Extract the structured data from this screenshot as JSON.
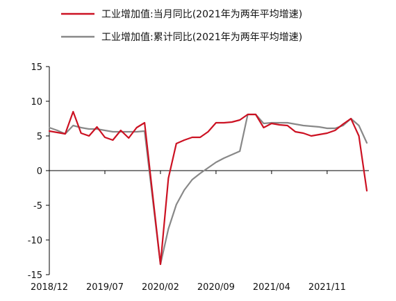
{
  "chart_data": {
    "type": "line",
    "title": "",
    "xlabel": "",
    "ylabel": "",
    "ylim": [
      -15,
      15
    ],
    "yticks": [
      15,
      10,
      5,
      0,
      -5,
      -10,
      -15
    ],
    "x": [
      "2018/12",
      "2019/01",
      "2019/02",
      "2019/03",
      "2019/04",
      "2019/05",
      "2019/06",
      "2019/07",
      "2019/08",
      "2019/09",
      "2019/10",
      "2019/11",
      "2019/12",
      "2020/01",
      "2020/02",
      "2020/03",
      "2020/04",
      "2020/05",
      "2020/06",
      "2020/07",
      "2020/08",
      "2020/09",
      "2020/10",
      "2020/11",
      "2020/12",
      "2021/01",
      "2021/02",
      "2021/03",
      "2021/04",
      "2021/05",
      "2021/06",
      "2021/07",
      "2021/08",
      "2021/09",
      "2021/10",
      "2021/11",
      "2021/12",
      "2022/01",
      "2022/02",
      "2022/03",
      "2022/04"
    ],
    "xtick_labels": [
      "2018/12",
      "2019/07",
      "2020/02",
      "2020/09",
      "2021/04",
      "2021/11"
    ],
    "legend_position": "top",
    "grid": false,
    "series": [
      {
        "name": "工业增加值:当月同比(2021年为两年平均增速)",
        "color": "#cc1122",
        "values": [
          5.7,
          5.5,
          5.3,
          8.5,
          5.4,
          5.0,
          6.3,
          4.8,
          4.4,
          5.8,
          4.7,
          6.2,
          6.9,
          null,
          -13.5,
          -1.1,
          3.9,
          4.4,
          4.8,
          4.8,
          5.6,
          6.9,
          6.9,
          7.0,
          7.3,
          8.1,
          8.1,
          6.2,
          6.8,
          6.6,
          6.5,
          5.6,
          5.4,
          5.0,
          5.2,
          5.4,
          5.8,
          6.7,
          7.5,
          5.0,
          -2.9
        ]
      },
      {
        "name": "工业增加值:累计同比(2021年为两年平均增速)",
        "color": "#888888",
        "values": [
          6.2,
          5.8,
          5.3,
          6.5,
          6.2,
          6.0,
          6.0,
          5.8,
          5.6,
          5.6,
          5.6,
          5.6,
          5.7,
          null,
          -13.5,
          -8.4,
          -4.9,
          -2.8,
          -1.3,
          -0.4,
          0.4,
          1.2,
          1.8,
          2.3,
          2.8,
          8.1,
          8.1,
          6.8,
          6.9,
          6.9,
          6.9,
          6.7,
          6.5,
          6.4,
          6.3,
          6.1,
          6.1,
          6.5,
          7.5,
          6.5,
          4.0
        ]
      }
    ]
  }
}
